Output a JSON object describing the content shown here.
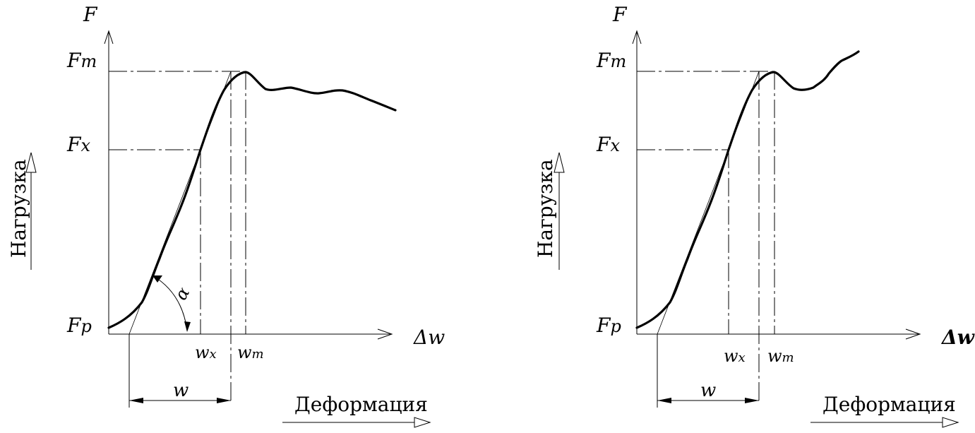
{
  "diagrams": [
    {
      "y_axis_symbol": "F",
      "x_axis_symbol": "Δw",
      "level_labels": {
        "max": "F",
        "max_sub": "m",
        "x": "F",
        "x_sub": "x",
        "p": "F",
        "p_sub": "p"
      },
      "tick_labels": {
        "wx": "w",
        "wx_sub": "x",
        "wm": "w",
        "wm_sub": "m"
      },
      "span_label": "w",
      "angle_label": "α",
      "y_word": "Нагрузка",
      "x_word": "Деформация"
    },
    {
      "y_axis_symbol": "F",
      "x_axis_symbol": "Δw",
      "level_labels": {
        "max": "F",
        "max_sub": "m",
        "x": "F",
        "x_sub": "x",
        "p": "F",
        "p_sub": "p"
      },
      "tick_labels": {
        "wx": "w",
        "wx_sub": "x",
        "wm": "w",
        "wm_sub": "m"
      },
      "span_label": "w",
      "y_word": "Нагрузка",
      "x_word": "Деформация"
    }
  ]
}
